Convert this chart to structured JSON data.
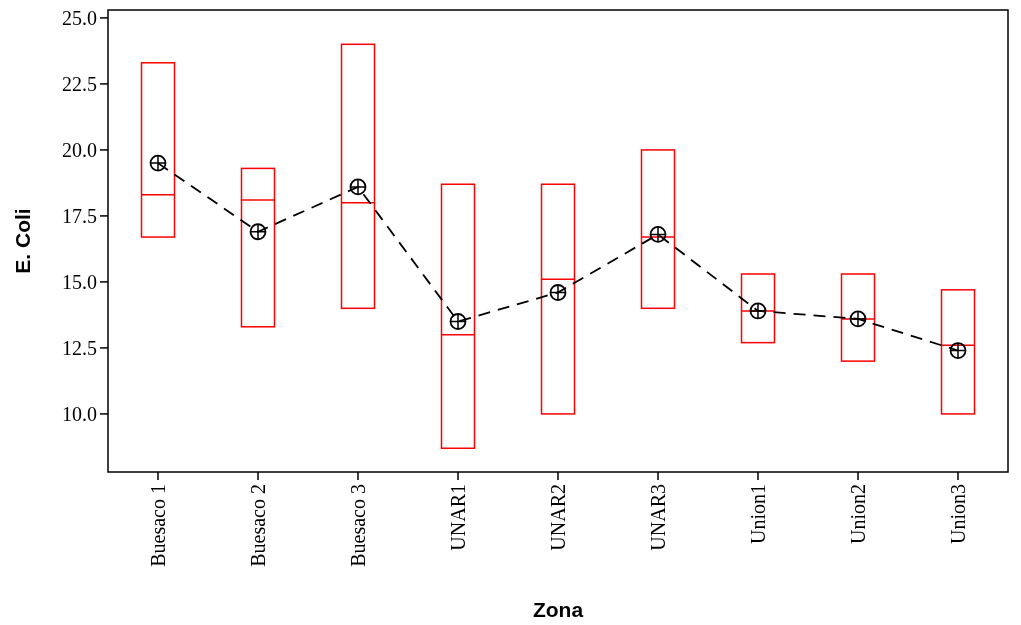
{
  "chart_data": {
    "type": "box",
    "xlabel": "Zona",
    "ylabel": "E. Coli",
    "categories": [
      "Buesaco 1",
      "Buesaco 2",
      "Buesaco 3",
      "UNAR1",
      "UNAR2",
      "UNAR3",
      "Union1",
      "Union2",
      "Union3"
    ],
    "color": "#ff0000",
    "boxes": [
      {
        "low": 16.7,
        "q1": 16.7,
        "median": 18.3,
        "q3": 23.3,
        "high": 23.3
      },
      {
        "low": 13.3,
        "q1": 13.3,
        "median": 18.1,
        "q3": 19.3,
        "high": 19.3
      },
      {
        "low": 14.0,
        "q1": 14.0,
        "median": 18.0,
        "q3": 24.0,
        "high": 24.0
      },
      {
        "low": 8.7,
        "q1": 8.7,
        "median": 13.0,
        "q3": 18.7,
        "high": 18.7
      },
      {
        "low": 10.0,
        "q1": 10.0,
        "median": 15.1,
        "q3": 18.7,
        "high": 18.7
      },
      {
        "low": 14.0,
        "q1": 14.0,
        "median": 16.7,
        "q3": 20.0,
        "high": 20.0
      },
      {
        "low": 12.7,
        "q1": 12.7,
        "median": 13.9,
        "q3": 15.3,
        "high": 15.3
      },
      {
        "low": 12.0,
        "q1": 12.0,
        "median": 13.6,
        "q3": 15.3,
        "high": 15.3
      },
      {
        "low": 10.0,
        "q1": 10.0,
        "median": 12.6,
        "q3": 14.7,
        "high": 14.7
      }
    ],
    "series": [
      {
        "type": "line",
        "color": "#000000",
        "line_style": "dashed",
        "marker": "circle",
        "values": [
          19.5,
          16.9,
          18.6,
          13.5,
          14.6,
          16.8,
          13.9,
          13.6,
          12.4
        ]
      }
    ],
    "ylim": [
      7.8,
      25.3
    ],
    "yticks": [
      {
        "value": 10,
        "label": "10.0"
      },
      {
        "value": 12.5,
        "label": "12.5"
      },
      {
        "value": 15,
        "label": "15.0"
      },
      {
        "value": 17.5,
        "label": "17.5"
      },
      {
        "value": 20,
        "label": "20.0"
      },
      {
        "value": 22.5,
        "label": "22.5"
      },
      {
        "value": 25,
        "label": "25.0"
      }
    ]
  }
}
